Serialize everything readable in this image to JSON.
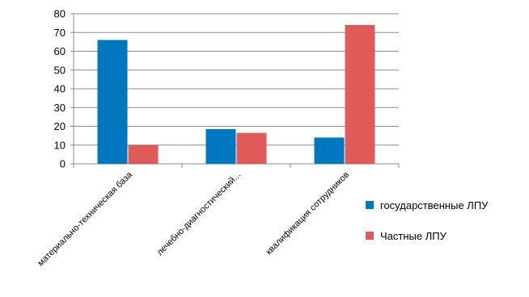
{
  "chart_data": {
    "type": "bar",
    "title": "",
    "xlabel": "",
    "ylabel": "",
    "ylim": [
      0,
      80
    ],
    "yticks": [
      "0",
      "10",
      "20",
      "30",
      "40",
      "50",
      "60",
      "70",
      "80"
    ],
    "grid": true,
    "legend_position": "right",
    "categories": [
      "материально-техническая база",
      "лечебно-диагностический...",
      "квалификация  сотрудников"
    ],
    "series": [
      {
        "name": "государственные ЛПУ",
        "color": "#0077BE",
        "values": [
          66,
          18.5,
          14
        ]
      },
      {
        "name": "Частные ЛПУ",
        "color": "#E05A5A",
        "values": [
          10,
          16.5,
          74
        ]
      }
    ]
  }
}
